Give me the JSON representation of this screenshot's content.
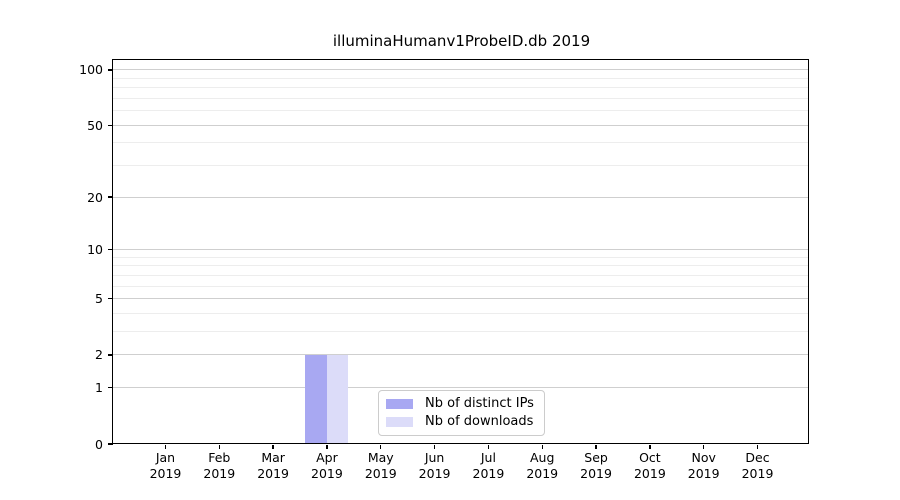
{
  "chart_data": {
    "type": "bar",
    "title": "illuminaHumanv1ProbeID.db 2019",
    "categories": [
      {
        "month": "Jan",
        "year": "2019"
      },
      {
        "month": "Feb",
        "year": "2019"
      },
      {
        "month": "Mar",
        "year": "2019"
      },
      {
        "month": "Apr",
        "year": "2019"
      },
      {
        "month": "May",
        "year": "2019"
      },
      {
        "month": "Jun",
        "year": "2019"
      },
      {
        "month": "Jul",
        "year": "2019"
      },
      {
        "month": "Aug",
        "year": "2019"
      },
      {
        "month": "Sep",
        "year": "2019"
      },
      {
        "month": "Oct",
        "year": "2019"
      },
      {
        "month": "Nov",
        "year": "2019"
      },
      {
        "month": "Dec",
        "year": "2019"
      }
    ],
    "series": [
      {
        "name": "Nb of distinct IPs",
        "color": "#a8a8f2",
        "values": [
          0,
          0,
          0,
          2,
          0,
          0,
          0,
          0,
          0,
          0,
          0,
          0
        ]
      },
      {
        "name": "Nb of downloads",
        "color": "#dcdcf9",
        "values": [
          0,
          0,
          0,
          2,
          0,
          0,
          0,
          0,
          0,
          0,
          0,
          0
        ]
      }
    ],
    "yscale": "log1p",
    "yticks": [
      0,
      1,
      2,
      5,
      10,
      20,
      50,
      100
    ],
    "minor_yticks": [
      3,
      4,
      6,
      7,
      8,
      9,
      30,
      40,
      60,
      70,
      80,
      90
    ],
    "ylim": [
      0,
      113
    ],
    "xlabel": "",
    "ylabel": "",
    "grid": "horizontal",
    "legend_position": "lower center",
    "colors": {
      "major_grid": "#cfcfcf",
      "minor_grid": "#ededed",
      "axis": "#000000",
      "background": "#ffffff"
    }
  }
}
